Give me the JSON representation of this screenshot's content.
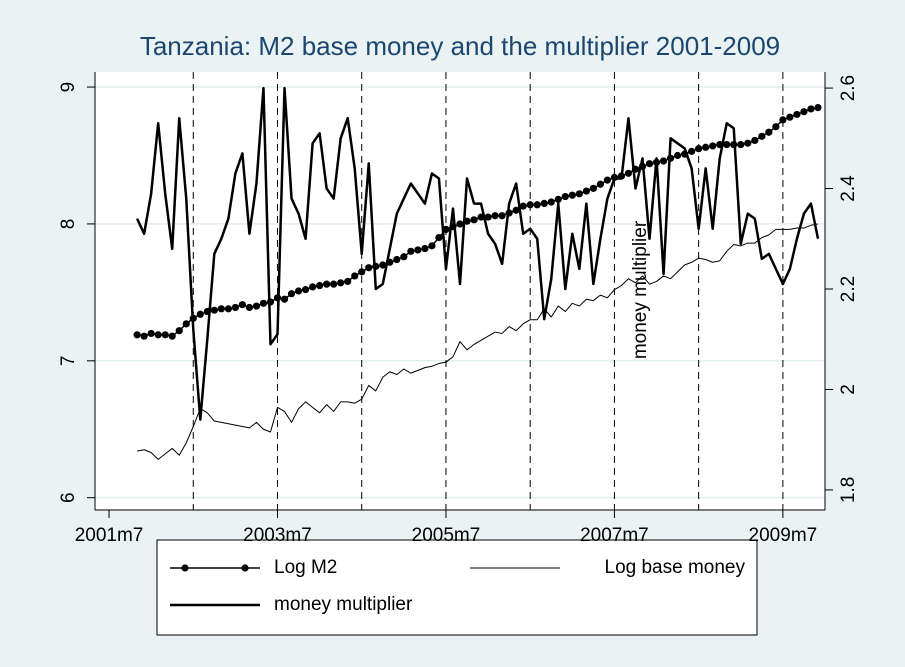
{
  "chart_data": {
    "type": "line",
    "title": "Tanzania: M2 base money and the multiplier 2001-2009",
    "annotation": "money multiplier",
    "x": [
      502,
      503,
      504,
      505,
      506,
      507,
      508,
      509,
      510,
      511,
      512,
      513,
      514,
      515,
      516,
      517,
      518,
      519,
      520,
      521,
      522,
      523,
      524,
      525,
      526,
      527,
      528,
      529,
      530,
      531,
      532,
      533,
      534,
      535,
      536,
      537,
      538,
      539,
      540,
      541,
      542,
      543,
      544,
      545,
      546,
      547,
      548,
      549,
      550,
      551,
      552,
      553,
      554,
      555,
      556,
      557,
      558,
      559,
      560,
      561,
      562,
      563,
      564,
      565,
      566,
      567,
      568,
      569,
      570,
      571,
      572,
      573,
      574,
      575,
      576,
      577,
      578,
      579,
      580,
      581,
      582,
      583,
      584,
      585,
      586,
      587,
      588,
      589,
      590,
      591,
      592,
      593,
      594,
      595,
      596,
      597,
      598,
      599
    ],
    "xlim": [
      496,
      600
    ],
    "xticks": [
      {
        "value": 498,
        "label": "2001m7"
      },
      {
        "value": 522,
        "label": "2003m7"
      },
      {
        "value": 546,
        "label": "2005m7"
      },
      {
        "value": 570,
        "label": "2007m7"
      },
      {
        "value": 594,
        "label": "2009m7"
      }
    ],
    "xlines": [
      510,
      522,
      534,
      546,
      558,
      570,
      582,
      594
    ],
    "ylim": [
      5.91,
      9.11
    ],
    "yticks": [
      6,
      7,
      8,
      9
    ],
    "y2lim": [
      1.76,
      2.632
    ],
    "y2ticks": [
      1.8,
      2,
      2.2,
      2.4,
      2.6
    ],
    "grid": true,
    "series": [
      {
        "name": "Log M2",
        "color": "#000000",
        "style": "dots",
        "values": [
          7.19,
          7.18,
          7.2,
          7.19,
          7.19,
          7.18,
          7.22,
          7.27,
          7.31,
          7.34,
          7.36,
          7.37,
          7.38,
          7.38,
          7.39,
          7.41,
          7.39,
          7.4,
          7.42,
          7.43,
          7.46,
          7.45,
          7.49,
          7.51,
          7.52,
          7.54,
          7.55,
          7.56,
          7.56,
          7.57,
          7.58,
          7.62,
          7.65,
          7.68,
          7.69,
          7.7,
          7.72,
          7.74,
          7.76,
          7.8,
          7.81,
          7.82,
          7.84,
          7.9,
          7.96,
          7.98,
          8.0,
          8.02,
          8.03,
          8.05,
          8.05,
          8.06,
          8.06,
          8.08,
          8.1,
          8.13,
          8.14,
          8.14,
          8.15,
          8.16,
          8.18,
          8.2,
          8.21,
          8.22,
          8.24,
          8.26,
          8.29,
          8.32,
          8.34,
          8.35,
          8.37,
          8.4,
          8.42,
          8.44,
          8.45,
          8.46,
          8.48,
          8.5,
          8.51,
          8.53,
          8.55,
          8.56,
          8.57,
          8.58,
          8.58,
          8.58,
          8.58,
          8.59,
          8.61,
          8.64,
          8.67,
          8.71,
          8.76,
          8.78,
          8.8,
          8.82,
          8.84,
          8.85
        ]
      },
      {
        "name": "Log base money",
        "color": "#000000",
        "style": "thin",
        "values": [
          6.34,
          6.35,
          6.33,
          6.28,
          6.32,
          6.36,
          6.31,
          6.4,
          6.52,
          6.65,
          6.62,
          6.56,
          6.55,
          6.54,
          6.53,
          6.52,
          6.51,
          6.55,
          6.5,
          6.48,
          6.66,
          6.63,
          6.55,
          6.65,
          6.7,
          6.66,
          6.62,
          6.68,
          6.63,
          6.7,
          6.7,
          6.69,
          6.72,
          6.82,
          6.78,
          6.88,
          6.92,
          6.9,
          6.94,
          6.91,
          6.93,
          6.95,
          6.96,
          6.98,
          6.99,
          7.03,
          7.14,
          7.08,
          7.12,
          7.15,
          7.18,
          7.21,
          7.2,
          7.25,
          7.22,
          7.27,
          7.3,
          7.3,
          7.38,
          7.32,
          7.4,
          7.36,
          7.42,
          7.4,
          7.45,
          7.44,
          7.48,
          7.46,
          7.52,
          7.55,
          7.6,
          7.57,
          7.62,
          7.56,
          7.58,
          7.62,
          7.6,
          7.65,
          7.7,
          7.72,
          7.75,
          7.74,
          7.72,
          7.73,
          7.8,
          7.85,
          7.84,
          7.86,
          7.86,
          7.9,
          7.92,
          7.96,
          7.96,
          7.96,
          7.97,
          7.97,
          7.99,
          8.0
        ]
      },
      {
        "name": "money multiplier",
        "color": "#000000",
        "style": "thick",
        "axis": "y2",
        "values": [
          2.34,
          2.31,
          2.39,
          2.53,
          2.39,
          2.28,
          2.54,
          2.38,
          2.12,
          1.94,
          2.1,
          2.27,
          2.3,
          2.34,
          2.43,
          2.47,
          2.31,
          2.41,
          2.6,
          2.09,
          2.11,
          2.6,
          2.38,
          2.35,
          2.3,
          2.49,
          2.51,
          2.4,
          2.38,
          2.5,
          2.54,
          2.44,
          2.27,
          2.45,
          2.2,
          2.21,
          2.28,
          2.35,
          2.38,
          2.41,
          2.39,
          2.37,
          2.43,
          2.42,
          2.24,
          2.36,
          2.21,
          2.42,
          2.37,
          2.37,
          2.31,
          2.29,
          2.25,
          2.37,
          2.41,
          2.31,
          2.32,
          2.3,
          2.14,
          2.22,
          2.37,
          2.2,
          2.31,
          2.24,
          2.37,
          2.21,
          2.3,
          2.38,
          2.42,
          2.42,
          2.54,
          2.4,
          2.46,
          2.3,
          2.46,
          2.23,
          2.5,
          2.49,
          2.48,
          2.44,
          2.32,
          2.44,
          2.32,
          2.46,
          2.53,
          2.52,
          2.29,
          2.35,
          2.34,
          2.26,
          2.27,
          2.24,
          2.21,
          2.24,
          2.3,
          2.35,
          2.37,
          2.3
        ]
      }
    ]
  }
}
